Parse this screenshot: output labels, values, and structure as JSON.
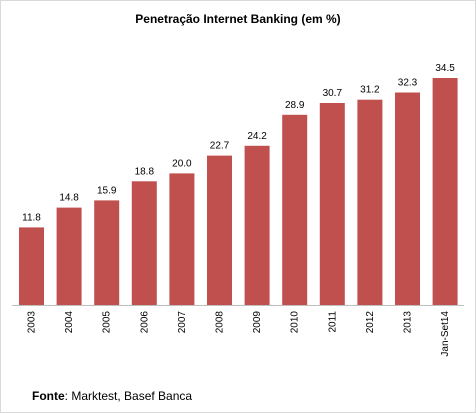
{
  "chart_data": {
    "type": "bar",
    "title": "Penetração Internet Banking (em %)",
    "categories": [
      "2003",
      "2004",
      "2005",
      "2006",
      "2007",
      "2008",
      "2009",
      "2010",
      "2011",
      "2012",
      "2013",
      "Jan-Set14"
    ],
    "values": [
      11.8,
      14.8,
      15.9,
      18.8,
      20.0,
      22.7,
      24.2,
      28.9,
      30.7,
      31.2,
      32.3,
      34.5
    ],
    "value_labels": [
      "11.8",
      "14.8",
      "15.9",
      "18.8",
      "20.0",
      "22.7",
      "24.2",
      "28.9",
      "30.7",
      "31.2",
      "32.3",
      "34.5"
    ],
    "bar_color": "#c0504d",
    "xlabel": "",
    "ylabel": "",
    "grid": false,
    "legend": "none"
  },
  "source": {
    "label": "Fonte",
    "text": ": Marktest, Basef Banca"
  }
}
